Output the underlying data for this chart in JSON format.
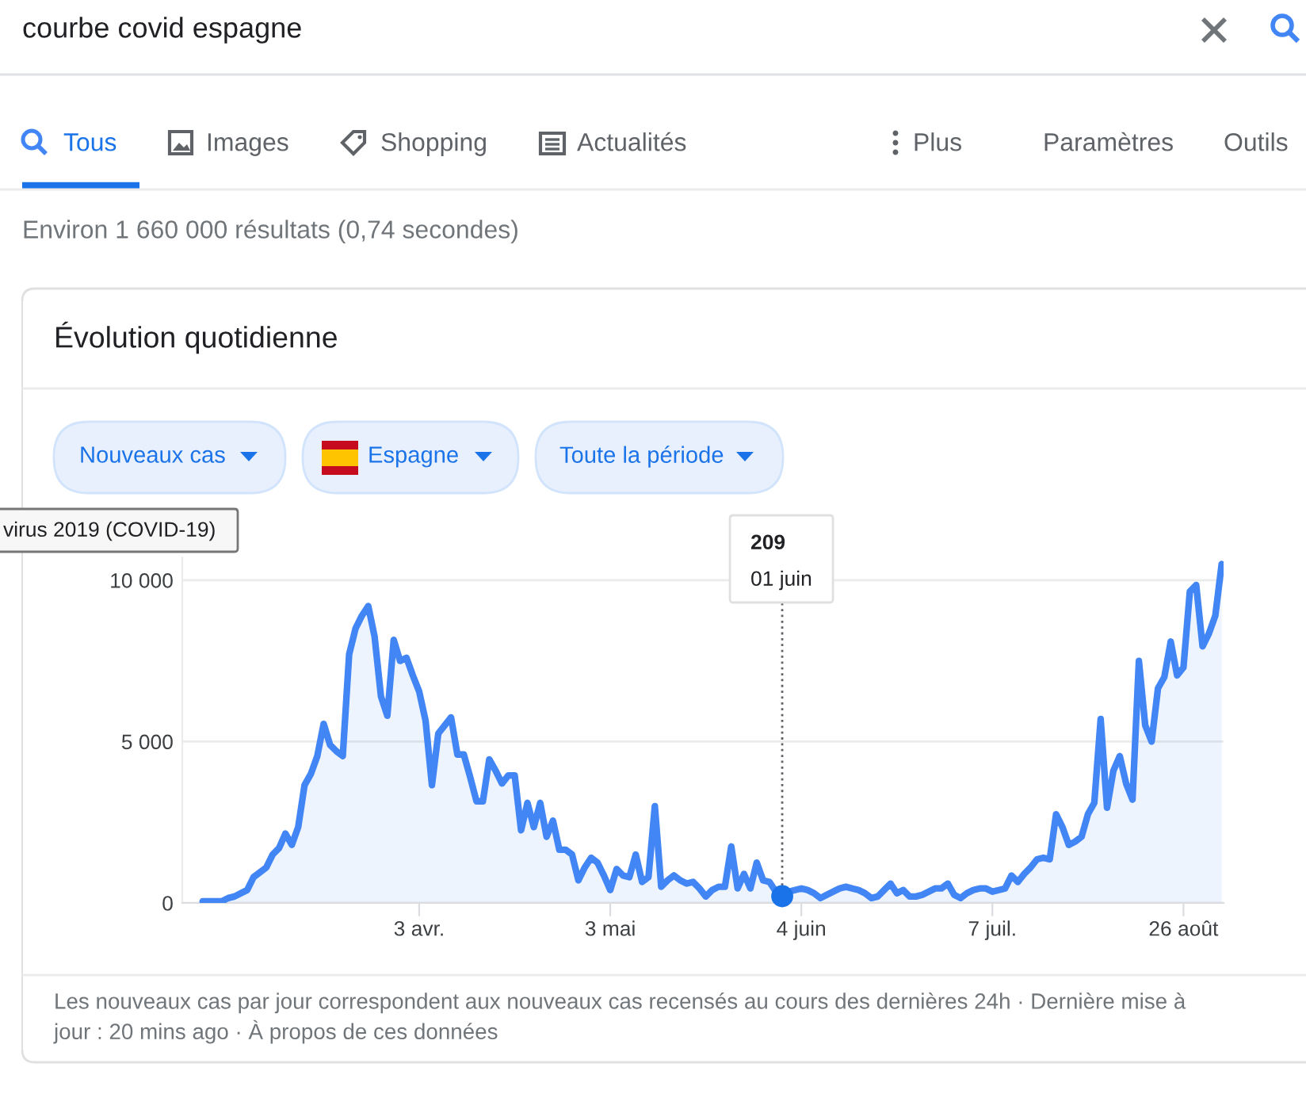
{
  "chart_data": {
    "type": "area",
    "title": "Évolution quotidienne",
    "categories": [
      null,
      null,
      null,
      null,
      null,
      null,
      null,
      null,
      null,
      null,
      null,
      null,
      null,
      null,
      null,
      null,
      null,
      null,
      null,
      null,
      null,
      null,
      null,
      null,
      null,
      null,
      null,
      null,
      null,
      null,
      null,
      null,
      null,
      null,
      "3 avr.",
      null,
      null,
      null,
      null,
      null,
      null,
      null,
      null,
      null,
      null,
      null,
      null,
      null,
      null,
      null,
      null,
      null,
      null,
      null,
      null,
      null,
      null,
      null,
      null,
      null,
      null,
      null,
      null,
      null,
      "3 mai",
      null,
      null,
      null,
      null,
      null,
      null,
      null,
      null,
      null,
      null,
      null,
      null,
      null,
      null,
      null,
      null,
      null,
      null,
      null,
      null,
      null,
      null,
      null,
      null,
      null,
      null,
      null,
      null,
      null,
      "4 juin",
      null,
      null,
      null,
      null,
      null,
      null,
      null,
      null,
      null,
      null,
      null,
      null,
      null,
      null,
      null,
      null,
      null,
      null,
      null,
      null,
      null,
      null,
      null,
      null,
      null,
      null,
      null,
      null,
      null,
      "7 juil.",
      null,
      null,
      null,
      null,
      null,
      null,
      null,
      null,
      null,
      null,
      null,
      null,
      null,
      null,
      null,
      null,
      null,
      null,
      null,
      null,
      null,
      null,
      null,
      null,
      null,
      null,
      null,
      null,
      null,
      "26 août",
      null,
      null,
      null,
      null,
      null,
      null
    ],
    "series": [
      {
        "color": "#4285f4",
        "values": [
          50,
          50,
          50,
          50,
          150,
          200,
          300,
          400,
          800,
          950,
          1100,
          1500,
          1700,
          2150,
          1800,
          2350,
          3650,
          4000,
          4550,
          5550,
          4900,
          4700,
          4550,
          7700,
          8500,
          8900,
          9200,
          8250,
          6400,
          5800,
          8150,
          7500,
          7600,
          7050,
          6550,
          5650,
          3650,
          5250,
          5500,
          5750,
          4600,
          4600,
          3900,
          3150,
          3150,
          4450,
          4100,
          3700,
          3950,
          3950,
          2250,
          3100,
          2350,
          3100,
          2050,
          2550,
          1650,
          1650,
          1500,
          700,
          1100,
          1400,
          1250,
          850,
          400,
          1050,
          850,
          800,
          1500,
          650,
          800,
          3000,
          500,
          700,
          850,
          700,
          600,
          650,
          450,
          200,
          400,
          500,
          500,
          1750,
          450,
          900,
          450,
          1250,
          700,
          650,
          350,
          209,
          350,
          400,
          450,
          400,
          300,
          150,
          250,
          350,
          450,
          500,
          450,
          400,
          300,
          150,
          200,
          400,
          600,
          300,
          400,
          200,
          200,
          250,
          350,
          450,
          450,
          600,
          250,
          150,
          300,
          400,
          450,
          450,
          350,
          400,
          450,
          850,
          650,
          900,
          1100,
          1350,
          1400,
          1350,
          2750,
          2350,
          1800,
          1900,
          2050,
          2750,
          3100,
          5700,
          2950,
          4100,
          4550,
          3700,
          3200,
          7500,
          5500,
          5000,
          6650,
          7000,
          8100,
          7050,
          7300,
          9650,
          9850,
          7950,
          8350,
          8900,
          10500
        ]
      }
    ],
    "ylim": [
      0,
      10700
    ],
    "yticks": [
      0,
      {
        "value": 5000,
        "label": "5 000"
      },
      {
        "value": 10000,
        "label": "10 000"
      }
    ],
    "grid": "y",
    "annotations": [
      "209\n01 juin",
      "courbe covid espagne",
      "Tous",
      "Images",
      "Shopping",
      "Actualités",
      "Plus",
      "Paramètres",
      "Outils",
      "Environ 1 660 000 résultats (0,74 secondes)",
      "Nouveaux cas",
      "Espagne",
      "Toute la période",
      "virus 2019 (COVID-19)",
      "Les nouveaux cas par jour correspondent aux nouveaux cas recensés au cours des dernières 24h · Dernière mise à\njour : 20 mins ago · À propos de ces données"
    ]
  }
}
